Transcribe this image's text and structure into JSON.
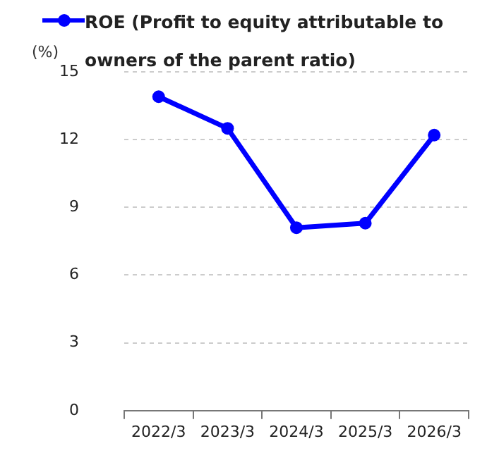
{
  "chart_data": {
    "type": "line",
    "ylabel": "(%)",
    "categories": [
      "2022/3",
      "2023/3",
      "2024/3",
      "2025/3",
      "2026/3"
    ],
    "series": [
      {
        "name": "ROE (Profit to equity attributable to owners of the parent ratio)",
        "color": "#0000ff",
        "values": [
          13.9,
          12.5,
          8.1,
          8.3,
          12.2
        ]
      }
    ],
    "ylim": [
      0,
      15
    ],
    "yticks": [
      0,
      3,
      6,
      9,
      12,
      15
    ],
    "grid": "y",
    "legend": "top",
    "marker": "circle",
    "line_style": "solid"
  }
}
